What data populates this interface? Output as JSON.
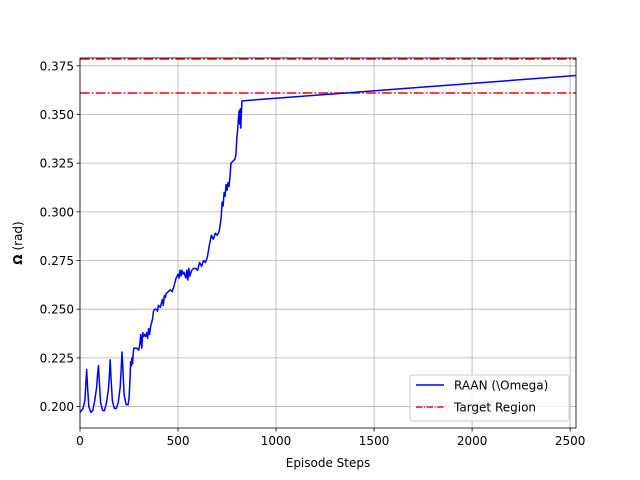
{
  "chart_data": {
    "type": "line",
    "xlabel": "Episode Steps",
    "ylabel": {
      "symbol": "Ω",
      "unit": "(rad)"
    },
    "xlim": [
      0,
      2530
    ],
    "ylim": [
      0.189,
      0.379
    ],
    "xticks": [
      0,
      500,
      1000,
      1500,
      2000,
      2500
    ],
    "yticks": [
      0.2,
      0.225,
      0.25,
      0.275,
      0.3,
      0.325,
      0.35,
      0.375
    ],
    "ytick_labels": [
      "0.200",
      "0.225",
      "0.250",
      "0.275",
      "0.300",
      "0.325",
      "0.350",
      "0.375"
    ],
    "grid": true,
    "legend_position": "lower-right",
    "series": [
      {
        "name": "RAAN (\\Omega)",
        "color": "#0000ff",
        "style": "solid",
        "x": [
          0,
          15,
          25,
          30,
          34,
          38,
          45,
          55,
          65,
          75,
          85,
          90,
          94,
          98,
          105,
          115,
          125,
          135,
          145,
          150,
          154,
          158,
          165,
          175,
          185,
          195,
          205,
          210,
          214,
          218,
          225,
          235,
          245,
          250,
          255,
          258,
          262,
          265,
          268,
          272,
          275,
          280,
          290,
          300,
          305,
          310,
          315,
          320,
          325,
          330,
          335,
          340,
          345,
          350,
          355,
          360,
          365,
          370,
          375,
          380,
          390,
          395,
          400,
          410,
          420,
          425,
          430,
          435,
          440,
          450,
          460,
          470,
          480,
          490,
          500,
          505,
          510,
          515,
          520,
          525,
          530,
          540,
          545,
          550,
          555,
          560,
          570,
          580,
          590,
          600,
          610,
          620,
          630,
          640,
          650,
          660,
          670,
          680,
          690,
          700,
          710,
          720,
          725,
          730,
          735,
          740,
          745,
          750,
          755,
          760,
          765,
          770,
          780,
          790,
          795,
          800,
          805,
          808,
          812,
          815,
          818,
          820,
          823,
          826,
          2530
        ],
        "y": [
          0.197,
          0.199,
          0.203,
          0.212,
          0.219,
          0.211,
          0.2,
          0.197,
          0.198,
          0.203,
          0.21,
          0.217,
          0.221,
          0.214,
          0.202,
          0.198,
          0.198,
          0.202,
          0.209,
          0.216,
          0.224,
          0.215,
          0.203,
          0.199,
          0.199,
          0.202,
          0.21,
          0.219,
          0.228,
          0.221,
          0.206,
          0.201,
          0.201,
          0.204,
          0.214,
          0.223,
          0.221,
          0.225,
          0.222,
          0.228,
          0.23,
          0.23,
          0.23,
          0.229,
          0.232,
          0.237,
          0.23,
          0.238,
          0.236,
          0.237,
          0.236,
          0.238,
          0.235,
          0.24,
          0.237,
          0.241,
          0.243,
          0.245,
          0.249,
          0.25,
          0.25,
          0.249,
          0.252,
          0.251,
          0.255,
          0.252,
          0.257,
          0.256,
          0.258,
          0.259,
          0.26,
          0.259,
          0.262,
          0.266,
          0.268,
          0.266,
          0.27,
          0.267,
          0.27,
          0.268,
          0.269,
          0.266,
          0.27,
          0.265,
          0.271,
          0.267,
          0.27,
          0.271,
          0.271,
          0.27,
          0.274,
          0.272,
          0.275,
          0.274,
          0.277,
          0.283,
          0.288,
          0.286,
          0.289,
          0.288,
          0.29,
          0.297,
          0.305,
          0.303,
          0.31,
          0.308,
          0.314,
          0.311,
          0.315,
          0.313,
          0.318,
          0.325,
          0.326,
          0.327,
          0.329,
          0.338,
          0.343,
          0.348,
          0.352,
          0.345,
          0.353,
          0.343,
          0.35,
          0.357,
          0.37
        ]
      }
    ],
    "reference_lines": [
      {
        "name": "Target Region",
        "color": "#ff0000",
        "style": "dashdot",
        "y": 0.3785
      },
      {
        "name": "",
        "color": "#ff0000",
        "style": "dashdot",
        "y": 0.361
      }
    ]
  }
}
